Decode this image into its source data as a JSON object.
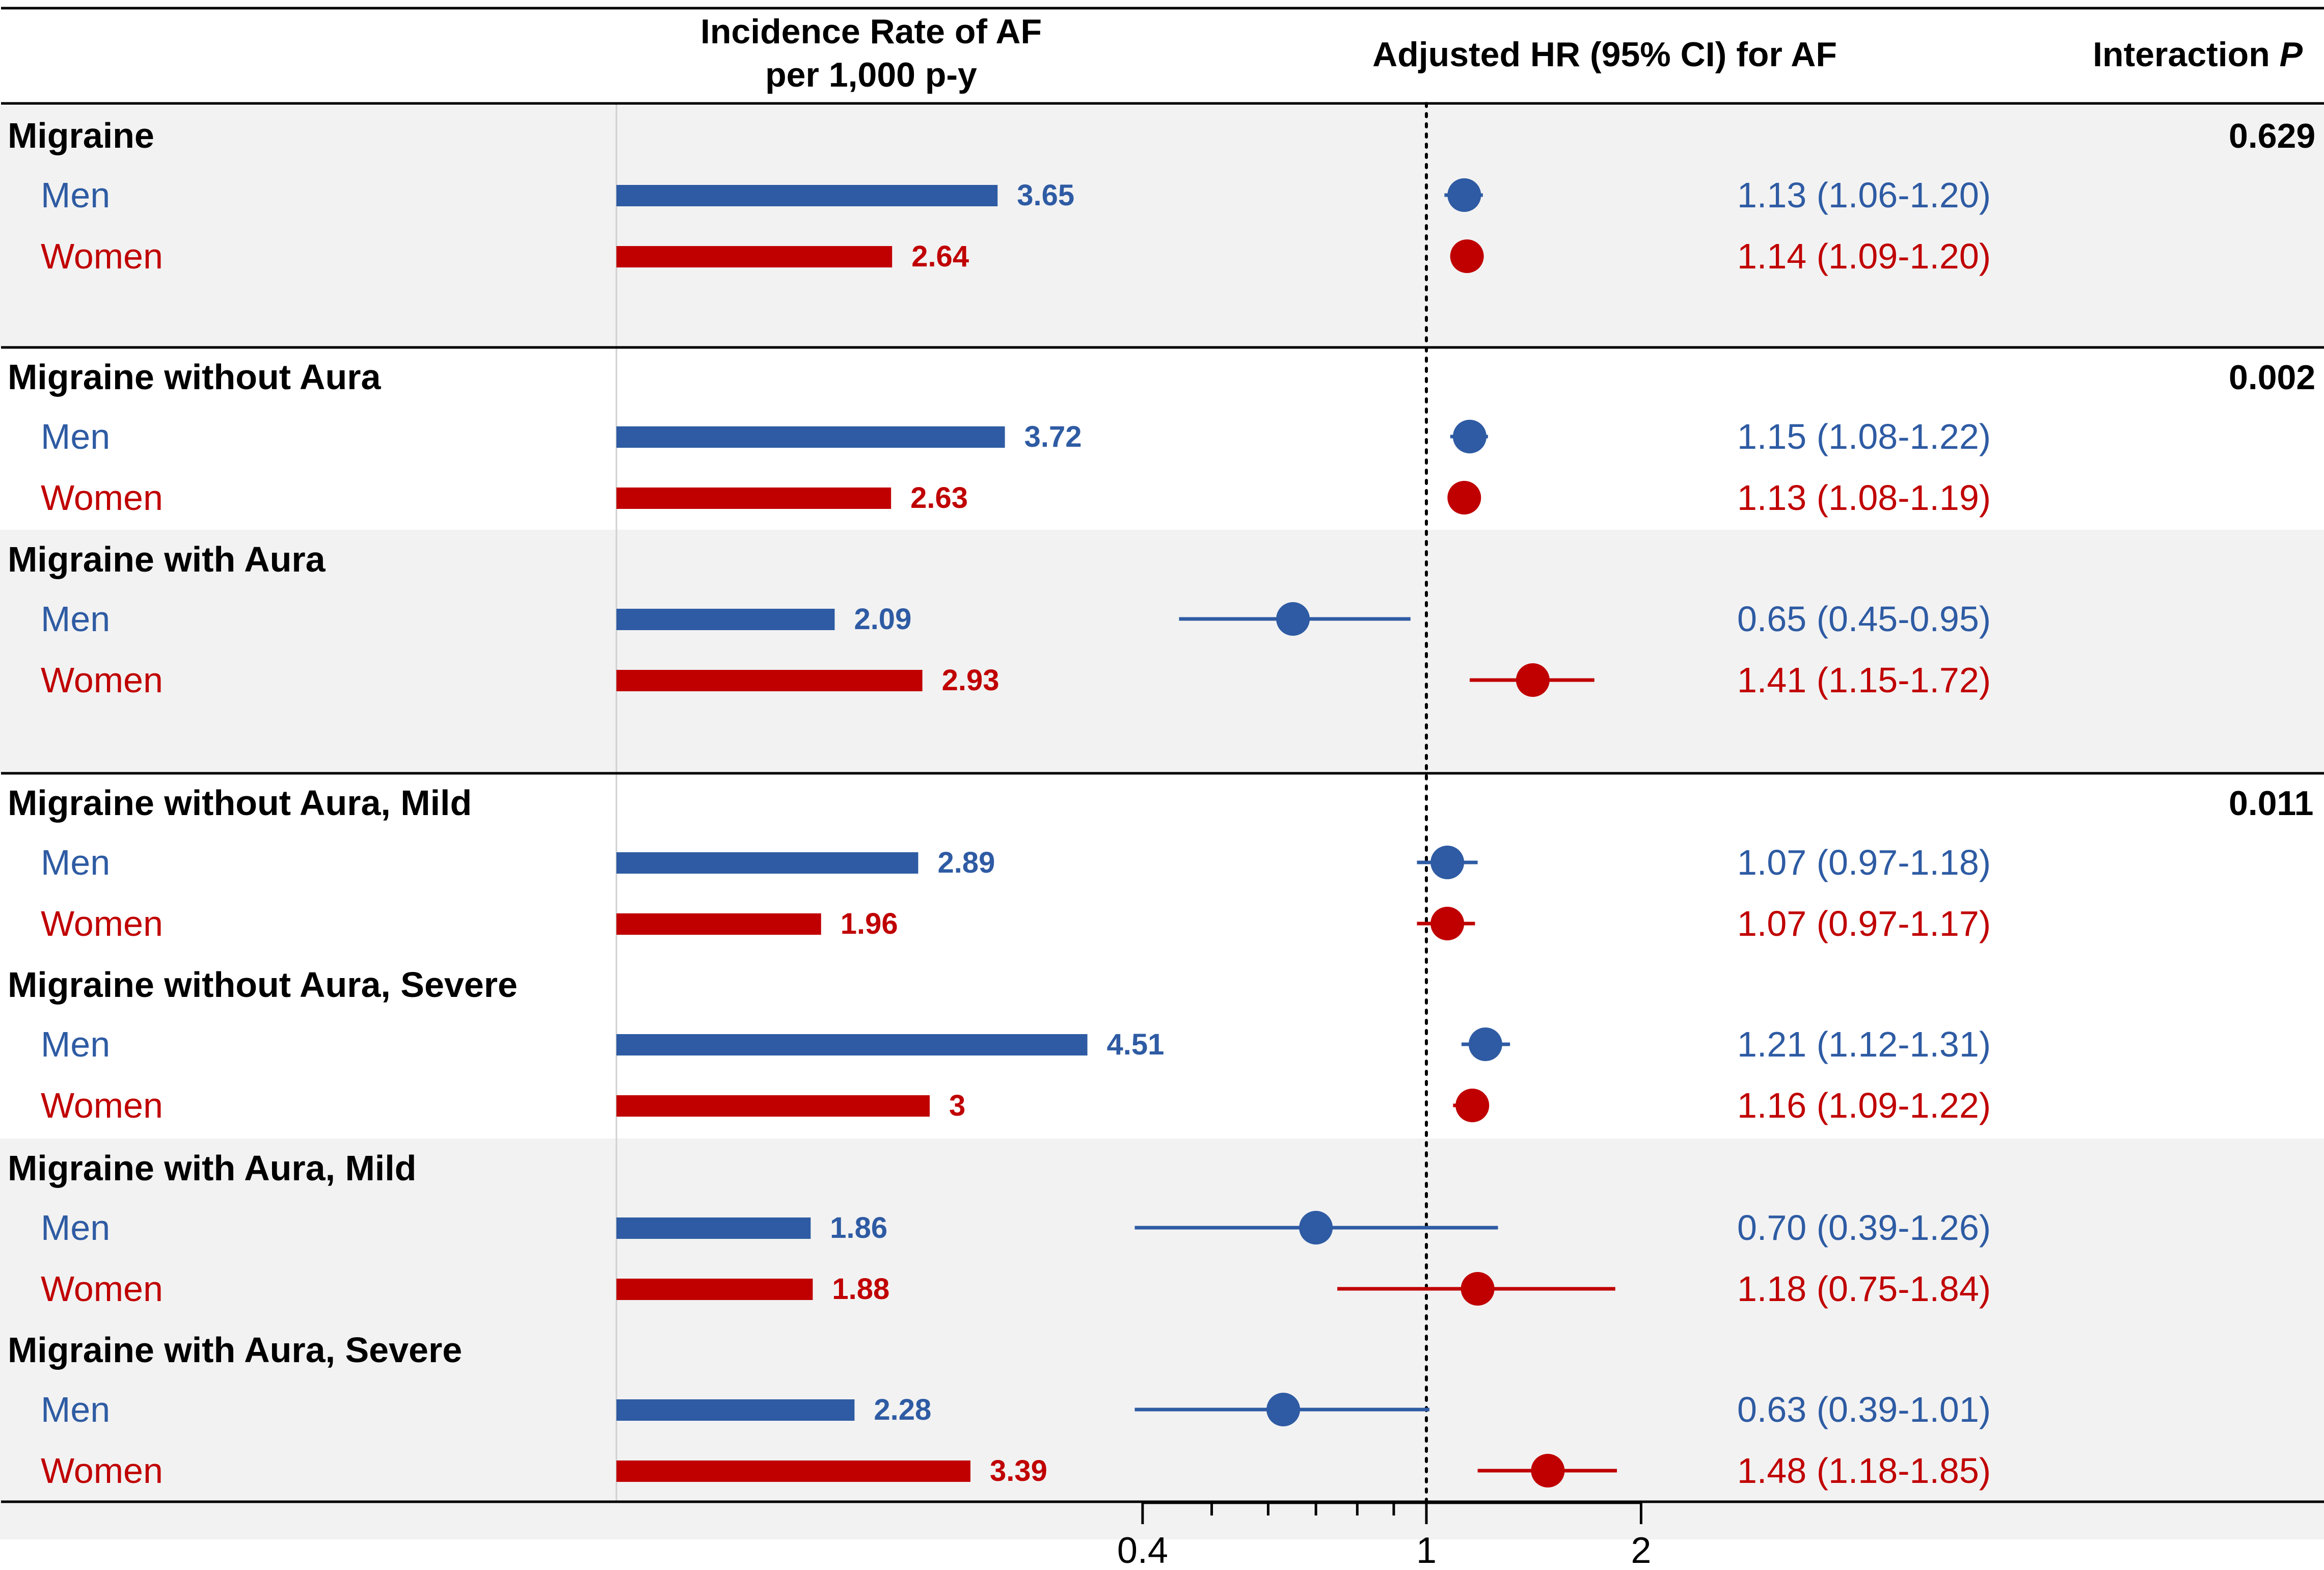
{
  "colors": {
    "men": "#2e5ba3",
    "women": "#c00000",
    "band": "#f2f2f2",
    "text": "#000000",
    "rule": "#000000"
  },
  "headers": {
    "incidence_line1": "Incidence Rate of AF",
    "incidence_line2": "per 1,000 p-y",
    "hr": "Adjusted HR (95%  CI) for AF",
    "interaction": "Interaction ",
    "interaction_italic": "P"
  },
  "chart_data": {
    "type": "forest_plot_with_bars",
    "title": "",
    "left_panel": {
      "label": "Incidence Rate of AF per 1,000 p-y",
      "xlim": [
        0,
        5
      ]
    },
    "right_panel": {
      "label": "Adjusted HR (95%  CI) for AF",
      "scale": "log",
      "xlim": [
        0.3,
        2.6
      ],
      "reference_line": 1,
      "ticks": [
        0.4,
        0.5,
        0.6,
        0.7,
        0.8,
        0.9,
        1,
        2
      ],
      "tick_labels": [
        "0.4",
        "1",
        "2"
      ]
    },
    "groups": [
      {
        "label": "Migraine",
        "interaction_p": "0.629",
        "rows": [
          {
            "sex": "Men",
            "rate": 3.65,
            "rate_label": "3.65",
            "hr": 1.13,
            "lo": 1.06,
            "hi": 1.2,
            "text": "1.13 (1.06-1.20)"
          },
          {
            "sex": "Women",
            "rate": 2.64,
            "rate_label": "2.64",
            "hr": 1.14,
            "lo": 1.09,
            "hi": 1.2,
            "text": "1.14 (1.09-1.20)"
          }
        ]
      },
      {
        "label": "Migraine without Aura",
        "interaction_p": "0.002",
        "rows": [
          {
            "sex": "Men",
            "rate": 3.72,
            "rate_label": "3.72",
            "hr": 1.15,
            "lo": 1.08,
            "hi": 1.22,
            "text": "1.15 (1.08-1.22)"
          },
          {
            "sex": "Women",
            "rate": 2.63,
            "rate_label": "2.63",
            "hr": 1.13,
            "lo": 1.08,
            "hi": 1.19,
            "text": "1.13 (1.08-1.19)"
          }
        ]
      },
      {
        "label": "Migraine with Aura",
        "interaction_p": "",
        "rows": [
          {
            "sex": "Men",
            "rate": 2.09,
            "rate_label": "2.09",
            "hr": 0.65,
            "lo": 0.45,
            "hi": 0.95,
            "text": "0.65 (0.45-0.95)"
          },
          {
            "sex": "Women",
            "rate": 2.93,
            "rate_label": "2.93",
            "hr": 1.41,
            "lo": 1.15,
            "hi": 1.72,
            "text": "1.41 (1.15-1.72)"
          }
        ]
      },
      {
        "label": "Migraine without Aura, Mild",
        "interaction_p": "0.011",
        "rows": [
          {
            "sex": "Men",
            "rate": 2.89,
            "rate_label": "2.89",
            "hr": 1.07,
            "lo": 0.97,
            "hi": 1.18,
            "text": "1.07 (0.97-1.18)"
          },
          {
            "sex": "Women",
            "rate": 1.96,
            "rate_label": "1.96",
            "hr": 1.07,
            "lo": 0.97,
            "hi": 1.17,
            "text": "1.07 (0.97-1.17)"
          }
        ]
      },
      {
        "label": "Migraine without Aura, Severe",
        "interaction_p": "",
        "rows": [
          {
            "sex": "Men",
            "rate": 4.51,
            "rate_label": "4.51",
            "hr": 1.21,
            "lo": 1.12,
            "hi": 1.31,
            "text": "1.21 (1.12-1.31)"
          },
          {
            "sex": "Women",
            "rate": 3.0,
            "rate_label": "3",
            "hr": 1.16,
            "lo": 1.09,
            "hi": 1.22,
            "text": "1.16 (1.09-1.22)"
          }
        ]
      },
      {
        "label": "Migraine with Aura, Mild",
        "interaction_p": "",
        "rows": [
          {
            "sex": "Men",
            "rate": 1.86,
            "rate_label": "1.86",
            "hr": 0.7,
            "lo": 0.39,
            "hi": 1.26,
            "text": "0.70 (0.39-1.26)"
          },
          {
            "sex": "Women",
            "rate": 1.88,
            "rate_label": "1.88",
            "hr": 1.18,
            "lo": 0.75,
            "hi": 1.84,
            "text": "1.18 (0.75-1.84)"
          }
        ]
      },
      {
        "label": "Migraine with Aura, Severe",
        "interaction_p": "",
        "rows": [
          {
            "sex": "Men",
            "rate": 2.28,
            "rate_label": "2.28",
            "hr": 0.63,
            "lo": 0.39,
            "hi": 1.01,
            "text": "0.63 (0.39-1.01)"
          },
          {
            "sex": "Women",
            "rate": 3.39,
            "rate_label": "3.39",
            "hr": 1.48,
            "lo": 1.18,
            "hi": 1.85,
            "text": "1.48 (1.18-1.85)"
          }
        ]
      }
    ]
  }
}
